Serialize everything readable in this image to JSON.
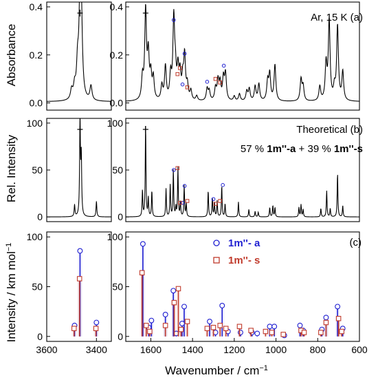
{
  "chart_data": [
    {
      "panel": "a",
      "type": "line",
      "annotation": "Ar, 15 K (a)",
      "ylabel": "Absorbance",
      "ylim": [
        -0.03,
        0.42
      ],
      "yticks": [
        "0.0",
        "0.2",
        "0.4"
      ],
      "yticks_values": [
        0.0,
        0.2,
        0.4
      ],
      "left_xlim": [
        3600,
        3340
      ],
      "right_xlim": [
        1720,
        600
      ],
      "linewidth": 10,
      "baseline": 0.005,
      "left_peaks": [
        [
          3500,
          0.04
        ],
        [
          3488,
          0.05
        ],
        [
          3476,
          0.13
        ],
        [
          3466,
          0.37
        ],
        [
          3461,
          0.31
        ],
        [
          3422,
          0.06
        ]
      ],
      "right_peaks": [
        [
          1640,
          0.09
        ],
        [
          1625,
          0.37
        ],
        [
          1612,
          0.18
        ],
        [
          1600,
          0.1
        ],
        [
          1588,
          0.09
        ],
        [
          1547,
          0.06
        ],
        [
          1530,
          0.14
        ],
        [
          1505,
          0.1
        ],
        [
          1490,
          0.33
        ],
        [
          1482,
          0.1
        ],
        [
          1470,
          0.12
        ],
        [
          1460,
          0.1
        ],
        [
          1447,
          0.08
        ],
        [
          1438,
          0.18
        ],
        [
          1425,
          0.06
        ],
        [
          1408,
          0.04
        ],
        [
          1380,
          0.02
        ],
        [
          1330,
          0.05
        ],
        [
          1320,
          0.04
        ],
        [
          1290,
          0.05
        ],
        [
          1278,
          0.08
        ],
        [
          1268,
          0.07
        ],
        [
          1252,
          0.09
        ],
        [
          1242,
          0.11
        ],
        [
          1200,
          0.02
        ],
        [
          1175,
          0.03
        ],
        [
          1140,
          0.04
        ],
        [
          1128,
          0.05
        ],
        [
          1100,
          0.06
        ],
        [
          1082,
          0.07
        ],
        [
          1040,
          0.08
        ],
        [
          1030,
          0.11
        ],
        [
          1005,
          0.15
        ],
        [
          880,
          0.09
        ],
        [
          870,
          0.06
        ],
        [
          790,
          0.06
        ],
        [
          760,
          0.15
        ],
        [
          745,
          0.33
        ],
        [
          720,
          0.05
        ],
        [
          705,
          0.31
        ],
        [
          680,
          0.12
        ]
      ],
      "cross_markers_x": [
        3466,
        1625
      ],
      "circle_markers": [
        [
          1490,
          0.345
        ],
        [
          1438,
          0.205
        ],
        [
          1448,
          0.077
        ],
        [
          1330,
          0.088
        ],
        [
          1250,
          0.155
        ]
      ],
      "square_markers": [
        [
          1472,
          0.12
        ],
        [
          1460,
          0.145
        ],
        [
          1425,
          0.065
        ],
        [
          1290,
          0.1
        ],
        [
          1268,
          0.085
        ]
      ]
    },
    {
      "panel": "b",
      "type": "line",
      "annotation_line1": "Theoretical (b)",
      "annotation_line2_parts": [
        "57 % ",
        "1m''-a",
        " + 39 % ",
        "1m''-s"
      ],
      "ylabel": "Rel. Intensity",
      "ylim": [
        -5,
        105
      ],
      "yticks": [
        "0",
        "50",
        "100"
      ],
      "yticks_values": [
        0,
        50,
        100
      ],
      "left_xlim": [
        3600,
        3340
      ],
      "right_xlim": [
        1720,
        600
      ],
      "linewidth": 4,
      "baseline": 0,
      "left_peaks": [
        [
          3488,
          12
        ],
        [
          3466,
          100
        ],
        [
          3461,
          60
        ],
        [
          3400,
          16
        ]
      ],
      "right_peaks": [
        [
          1640,
          28
        ],
        [
          1625,
          100
        ],
        [
          1612,
          20
        ],
        [
          1595,
          28
        ],
        [
          1527,
          30
        ],
        [
          1507,
          34
        ],
        [
          1492,
          50
        ],
        [
          1480,
          10
        ],
        [
          1470,
          52
        ],
        [
          1458,
          16
        ],
        [
          1440,
          33
        ],
        [
          1430,
          14
        ],
        [
          1325,
          28
        ],
        [
          1305,
          20
        ],
        [
          1295,
          15
        ],
        [
          1282,
          17
        ],
        [
          1260,
          33
        ],
        [
          1244,
          14
        ],
        [
          1180,
          16
        ],
        [
          1130,
          8
        ],
        [
          1100,
          6
        ],
        [
          1085,
          5
        ],
        [
          1030,
          10
        ],
        [
          1015,
          12
        ],
        [
          1005,
          10
        ],
        [
          890,
          10
        ],
        [
          880,
          13
        ],
        [
          870,
          8
        ],
        [
          785,
          9
        ],
        [
          757,
          28
        ],
        [
          740,
          9
        ],
        [
          705,
          47
        ],
        [
          680,
          12
        ]
      ],
      "cross_markers_x": [
        3466,
        1625
      ],
      "circle_markers": [
        [
          1490,
          50
        ],
        [
          1438,
          33
        ],
        [
          1448,
          15
        ],
        [
          1300,
          19
        ],
        [
          1255,
          34
        ]
      ],
      "square_markers": [
        [
          1472,
          52
        ],
        [
          1460,
          15
        ],
        [
          1425,
          17
        ],
        [
          1290,
          14
        ],
        [
          1268,
          17
        ]
      ]
    },
    {
      "panel": "c",
      "type": "stem",
      "annotation": "(c)",
      "ylabel": "Intensity / km mol",
      "ylabel_sup": "−1",
      "xlabel": "Wavenumber / cm",
      "xlabel_sup": "−1",
      "ylim": [
        -5,
        105
      ],
      "yticks": [
        "0",
        "50",
        "100"
      ],
      "yticks_values": [
        0,
        50,
        100
      ],
      "left_xlim": [
        3600,
        3340
      ],
      "right_xlim": [
        1720,
        600
      ],
      "left_xticks": [
        "3600",
        "3400"
      ],
      "left_xticks_values": [
        3600,
        3400
      ],
      "right_xticks": [
        "1600",
        "1400",
        "1200",
        "1000",
        "800",
        "600"
      ],
      "right_xticks_values": [
        1600,
        1400,
        1200,
        1000,
        800,
        600
      ],
      "series": [
        {
          "name": "1m''- a",
          "color": "#1f1fd1",
          "marker": "circle",
          "left_points": [
            [
              3488,
              11
            ],
            [
              3466,
              86
            ],
            [
              3400,
              14
            ]
          ],
          "right_points": [
            [
              1638,
              93
            ],
            [
              1610,
              9
            ],
            [
              1597,
              16
            ],
            [
              1530,
              22
            ],
            [
              1492,
              46
            ],
            [
              1478,
              3
            ],
            [
              1440,
              30
            ],
            [
              1450,
              13
            ],
            [
              1318,
              15
            ],
            [
              1290,
              4
            ],
            [
              1258,
              31
            ],
            [
              1230,
              5
            ],
            [
              1170,
              4
            ],
            [
              1115,
              4
            ],
            [
              1090,
              3
            ],
            [
              1030,
              10
            ],
            [
              1008,
              10
            ],
            [
              960,
              1
            ],
            [
              885,
              11
            ],
            [
              870,
              6
            ],
            [
              780,
              7
            ],
            [
              760,
              19
            ],
            [
              705,
              30
            ],
            [
              680,
              8
            ]
          ]
        },
        {
          "name": "1m''- s",
          "color": "#c03a2b",
          "marker": "square",
          "left_points": [
            [
              3490,
              8
            ],
            [
              3468,
              58
            ],
            [
              3402,
              8
            ]
          ],
          "right_points": [
            [
              1642,
              64
            ],
            [
              1622,
              11
            ],
            [
              1605,
              5
            ],
            [
              1530,
              11
            ],
            [
              1488,
              34
            ],
            [
              1468,
              48
            ],
            [
              1455,
              7
            ],
            [
              1425,
              15
            ],
            [
              1330,
              8
            ],
            [
              1300,
              9
            ],
            [
              1268,
              11
            ],
            [
              1240,
              8
            ],
            [
              1175,
              10
            ],
            [
              1120,
              6
            ],
            [
              1050,
              5
            ],
            [
              1020,
              4
            ],
            [
              965,
              2
            ],
            [
              880,
              6
            ],
            [
              865,
              4
            ],
            [
              785,
              4
            ],
            [
              760,
              14
            ],
            [
              700,
              18
            ],
            [
              685,
              5
            ]
          ]
        }
      ]
    }
  ]
}
